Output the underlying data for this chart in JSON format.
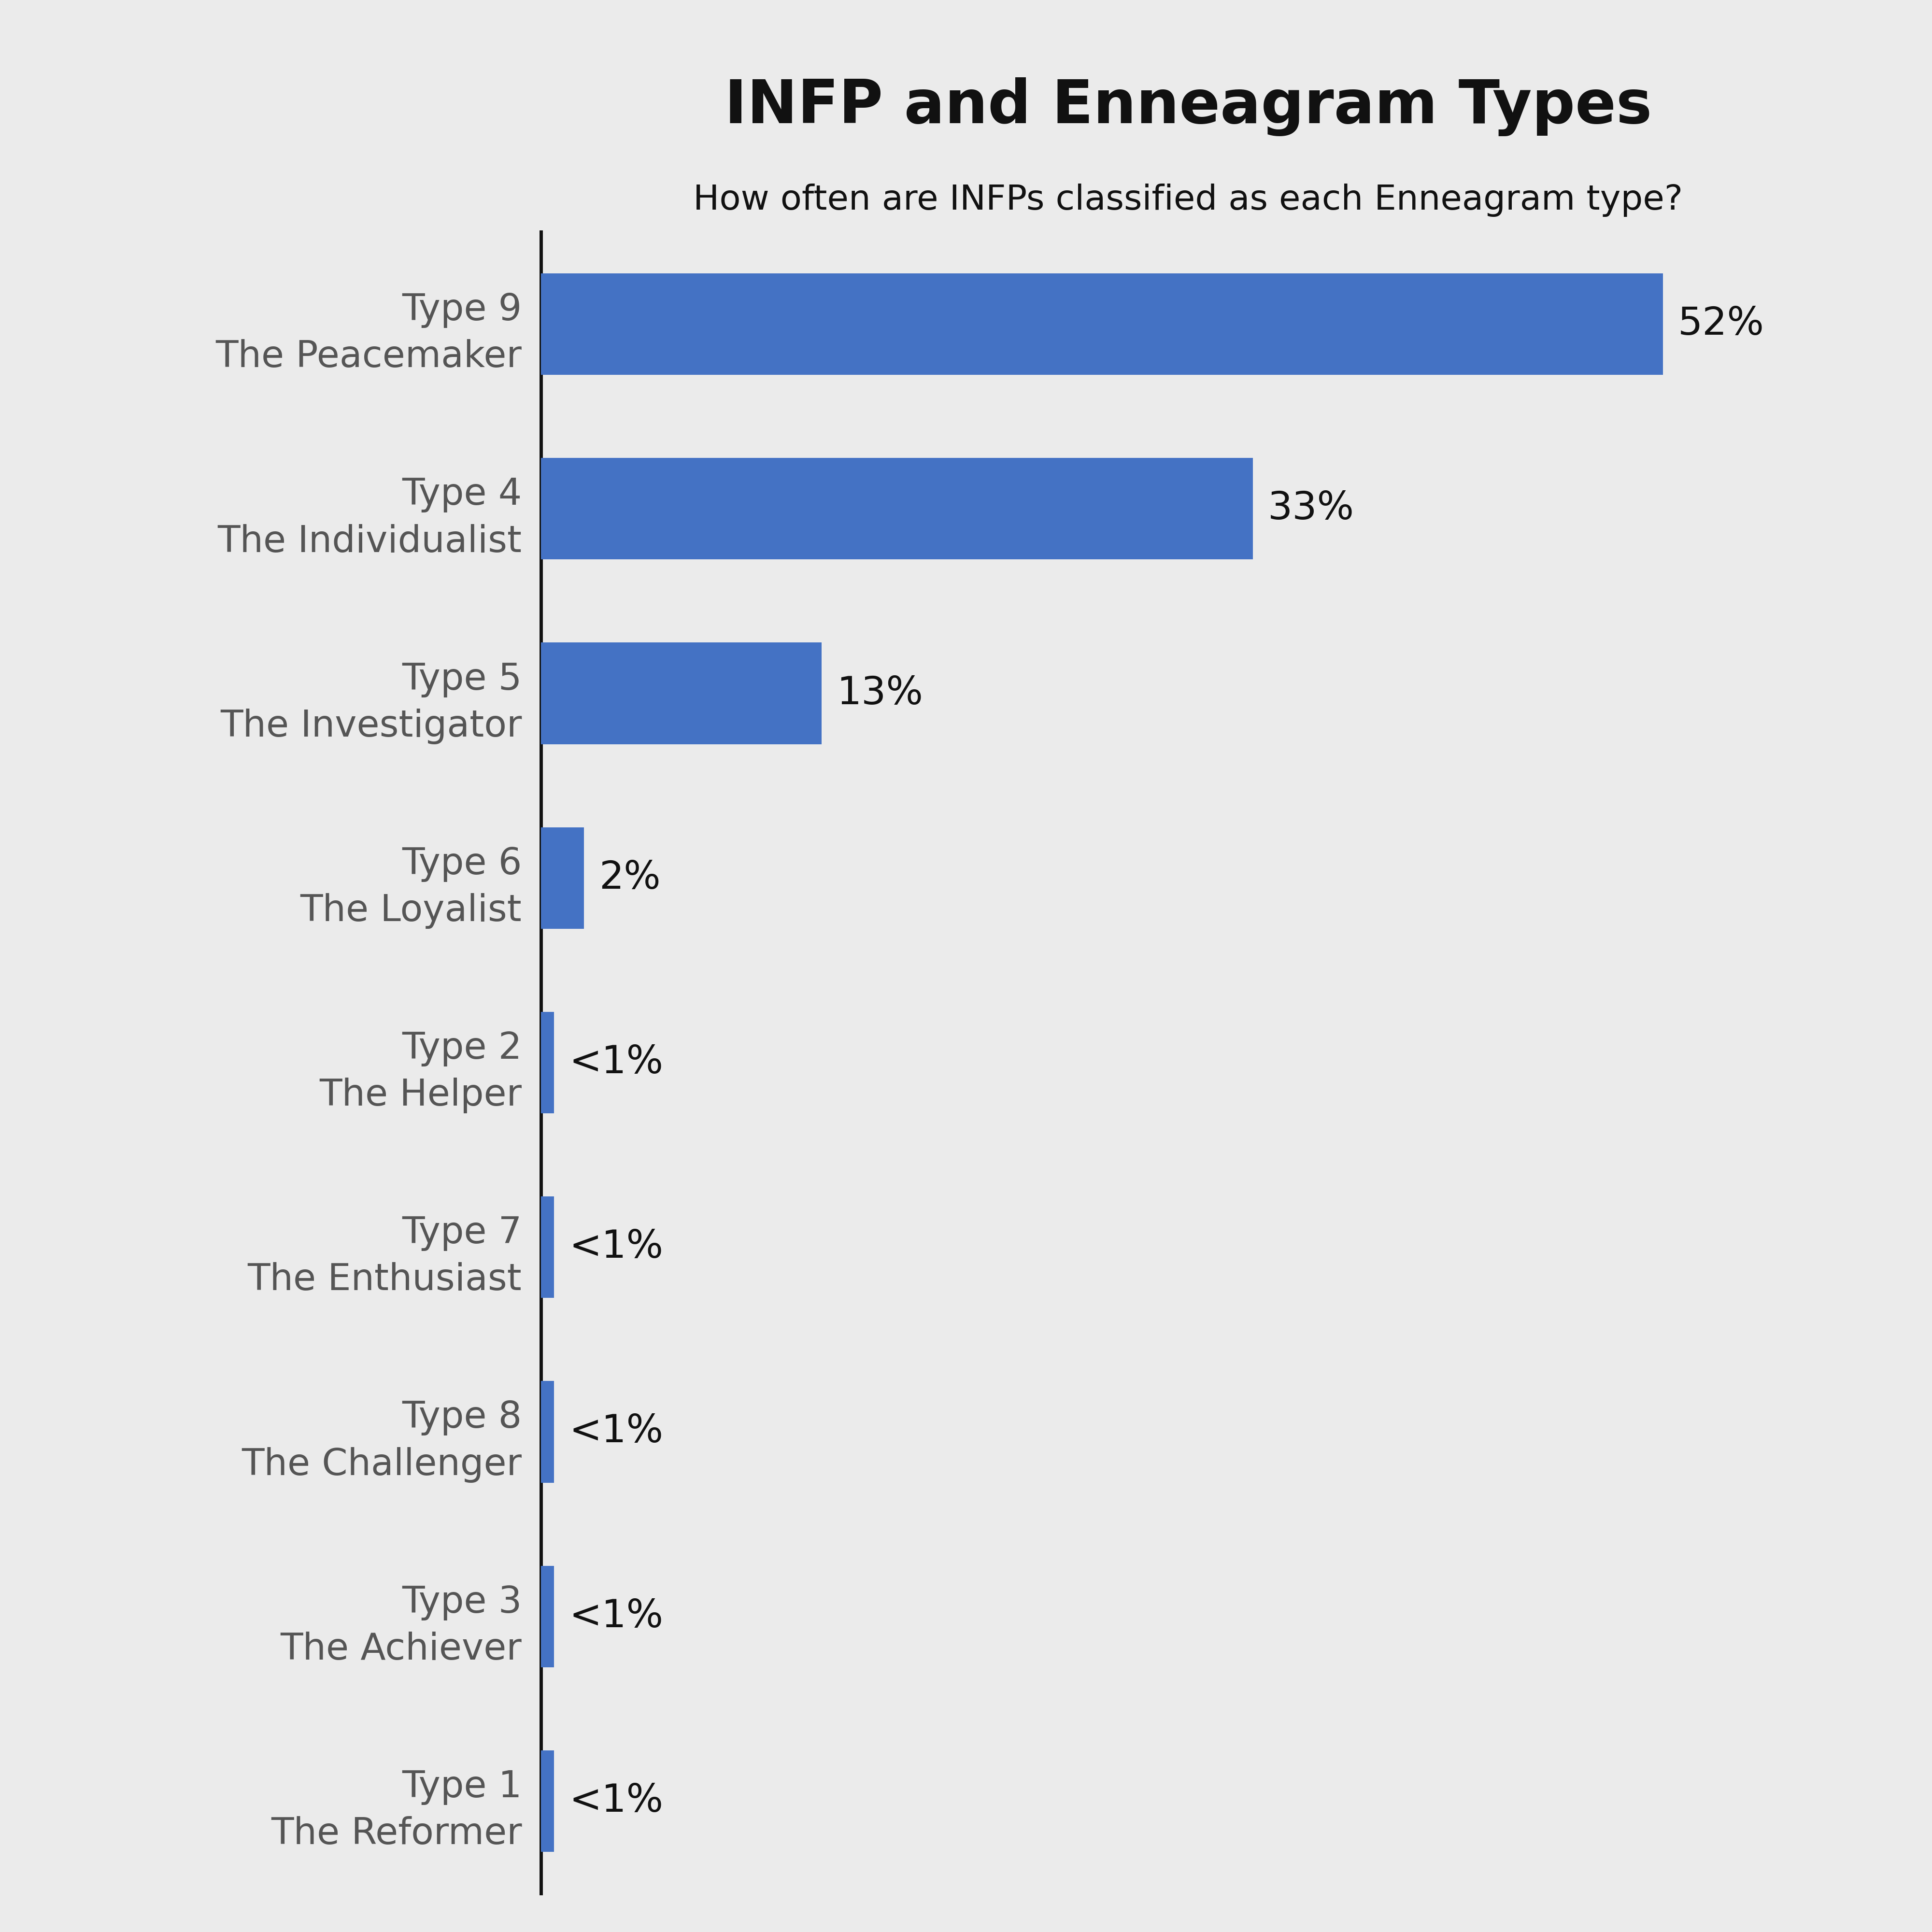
{
  "title": "INFP and Enneagram Types",
  "subtitle": "How often are INFPs classified as each Enneagram type?",
  "categories": [
    "Type 9\nThe Peacemaker",
    "Type 4\nThe Individualist",
    "Type 5\nThe Investigator",
    "Type 6\nThe Loyalist",
    "Type 2\nThe Helper",
    "Type 7\nThe Enthusiast",
    "Type 8\nThe Challenger",
    "Type 3\nThe Achiever",
    "Type 1\nThe Reformer"
  ],
  "values": [
    52,
    33,
    13,
    2,
    0.6,
    0.6,
    0.6,
    0.6,
    0.6
  ],
  "labels": [
    "52%",
    "33%",
    "13%",
    "2%",
    "<1%",
    "<1%",
    "<1%",
    "<1%",
    "<1%"
  ],
  "bar_color": "#4472C4",
  "background_color": "#EBEBEB",
  "title_color": "#111111",
  "subtitle_color": "#111111",
  "label_color": "#111111",
  "ytick_color": "#555555",
  "xlim": [
    0,
    60
  ],
  "title_fontsize": 90,
  "subtitle_fontsize": 52,
  "label_fontsize": 58,
  "ytick_fontsize": 55,
  "bar_height": 0.55,
  "grid_color": "#cccccc",
  "spine_color": "#111111"
}
